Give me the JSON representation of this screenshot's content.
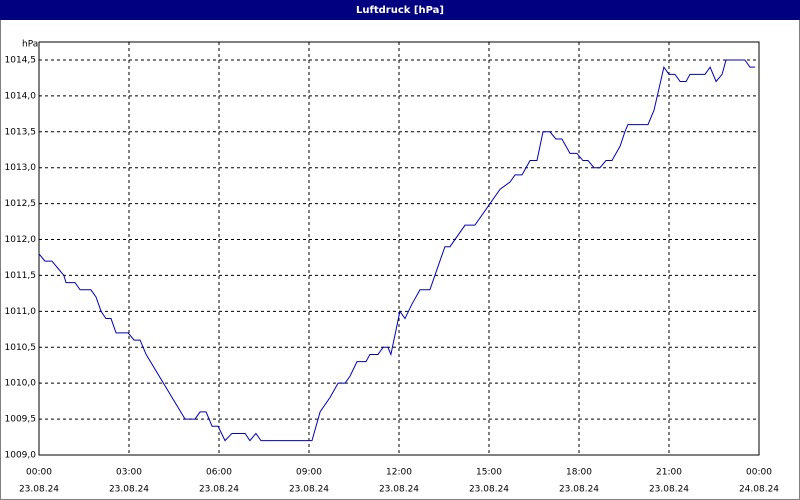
{
  "chart_data": {
    "type": "line",
    "title": "Luftdruck [hPa]",
    "y_label": "hPa",
    "x": [
      0,
      0.2,
      0.43,
      0.63,
      0.83,
      0.9,
      1.2,
      1.37,
      1.73,
      1.9,
      2.07,
      2.23,
      2.4,
      2.57,
      2.97,
      3.17,
      3.37,
      3.57,
      4.87,
      5.2,
      5.37,
      5.57,
      5.77,
      5.97,
      6.2,
      6.43,
      6.87,
      7.03,
      7.23,
      7.4,
      9.1,
      9.37,
      9.7,
      9.97,
      10.2,
      10.37,
      10.6,
      10.9,
      11.03,
      11.3,
      11.47,
      11.63,
      11.73,
      12.03,
      12.2,
      12.43,
      12.7,
      13.03,
      13.53,
      13.7,
      14.2,
      14.53,
      15.37,
      15.7,
      15.87,
      16.1,
      16.37,
      16.6,
      16.8,
      17.03,
      17.23,
      17.43,
      17.7,
      17.93,
      18.13,
      18.3,
      18.5,
      18.7,
      18.9,
      19.1,
      19.37,
      19.53,
      19.63,
      20.3,
      20.5,
      20.83,
      21.0,
      21.2,
      21.37,
      21.57,
      21.7,
      22.2,
      22.37,
      22.57,
      22.77,
      22.9,
      23.53,
      23.7,
      23.87
    ],
    "series": [
      {
        "name": "Luftdruck",
        "color": "#0000c0",
        "values": [
          1011.8,
          1011.7,
          1011.7,
          1011.6,
          1011.5,
          1011.4,
          1011.4,
          1011.3,
          1011.3,
          1011.2,
          1011.0,
          1010.9,
          1010.9,
          1010.7,
          1010.7,
          1010.6,
          1010.6,
          1010.4,
          1009.5,
          1009.5,
          1009.6,
          1009.6,
          1009.4,
          1009.4,
          1009.2,
          1009.3,
          1009.3,
          1009.2,
          1009.3,
          1009.2,
          1009.2,
          1009.6,
          1009.8,
          1010.0,
          1010.0,
          1010.1,
          1010.3,
          1010.3,
          1010.4,
          1010.4,
          1010.5,
          1010.5,
          1010.4,
          1011.0,
          1010.9,
          1011.1,
          1011.3,
          1011.3,
          1011.9,
          1011.9,
          1012.2,
          1012.2,
          1012.7,
          1012.8,
          1012.9,
          1012.9,
          1013.1,
          1013.1,
          1013.5,
          1013.5,
          1013.4,
          1013.4,
          1013.2,
          1013.2,
          1013.1,
          1013.1,
          1013.0,
          1013.0,
          1013.1,
          1013.1,
          1013.3,
          1013.5,
          1013.6,
          1013.6,
          1013.8,
          1014.4,
          1014.3,
          1014.3,
          1014.2,
          1014.2,
          1014.3,
          1014.3,
          1014.4,
          1014.2,
          1014.3,
          1014.5,
          1014.5,
          1014.4,
          1014.4
        ]
      }
    ],
    "xlim": [
      0,
      24
    ],
    "xticks": [
      {
        "value": 0,
        "label": "00:00",
        "date": "23.08.24"
      },
      {
        "value": 3,
        "label": "03:00",
        "date": "23.08.24"
      },
      {
        "value": 6,
        "label": "06:00",
        "date": "23.08.24"
      },
      {
        "value": 9,
        "label": "09:00",
        "date": "23.08.24"
      },
      {
        "value": 12,
        "label": "12:00",
        "date": "23.08.24"
      },
      {
        "value": 15,
        "label": "15:00",
        "date": "23.08.24"
      },
      {
        "value": 18,
        "label": "18:00",
        "date": "23.08.24"
      },
      {
        "value": 21,
        "label": "21:00",
        "date": "23.08.24"
      },
      {
        "value": 24,
        "label": "00:00",
        "date": "24.08.24"
      }
    ],
    "ylim": [
      1009,
      1014.75
    ],
    "yticks": [
      {
        "value": 1009,
        "label": "1009,0"
      },
      {
        "value": 1009.5,
        "label": "1009,5"
      },
      {
        "value": 1010,
        "label": "1010,0"
      },
      {
        "value": 1010.5,
        "label": "1010,5"
      },
      {
        "value": 1011,
        "label": "1011,0"
      },
      {
        "value": 1011.5,
        "label": "1011,5"
      },
      {
        "value": 1012,
        "label": "1012,0"
      },
      {
        "value": 1012.5,
        "label": "1012,5"
      },
      {
        "value": 1013,
        "label": "1013,0"
      },
      {
        "value": 1013.5,
        "label": "1013,5"
      },
      {
        "value": 1014,
        "label": "1014,0"
      },
      {
        "value": 1014.5,
        "label": "1014,5"
      }
    ],
    "grid": true,
    "title_bar_color": "#000080"
  }
}
